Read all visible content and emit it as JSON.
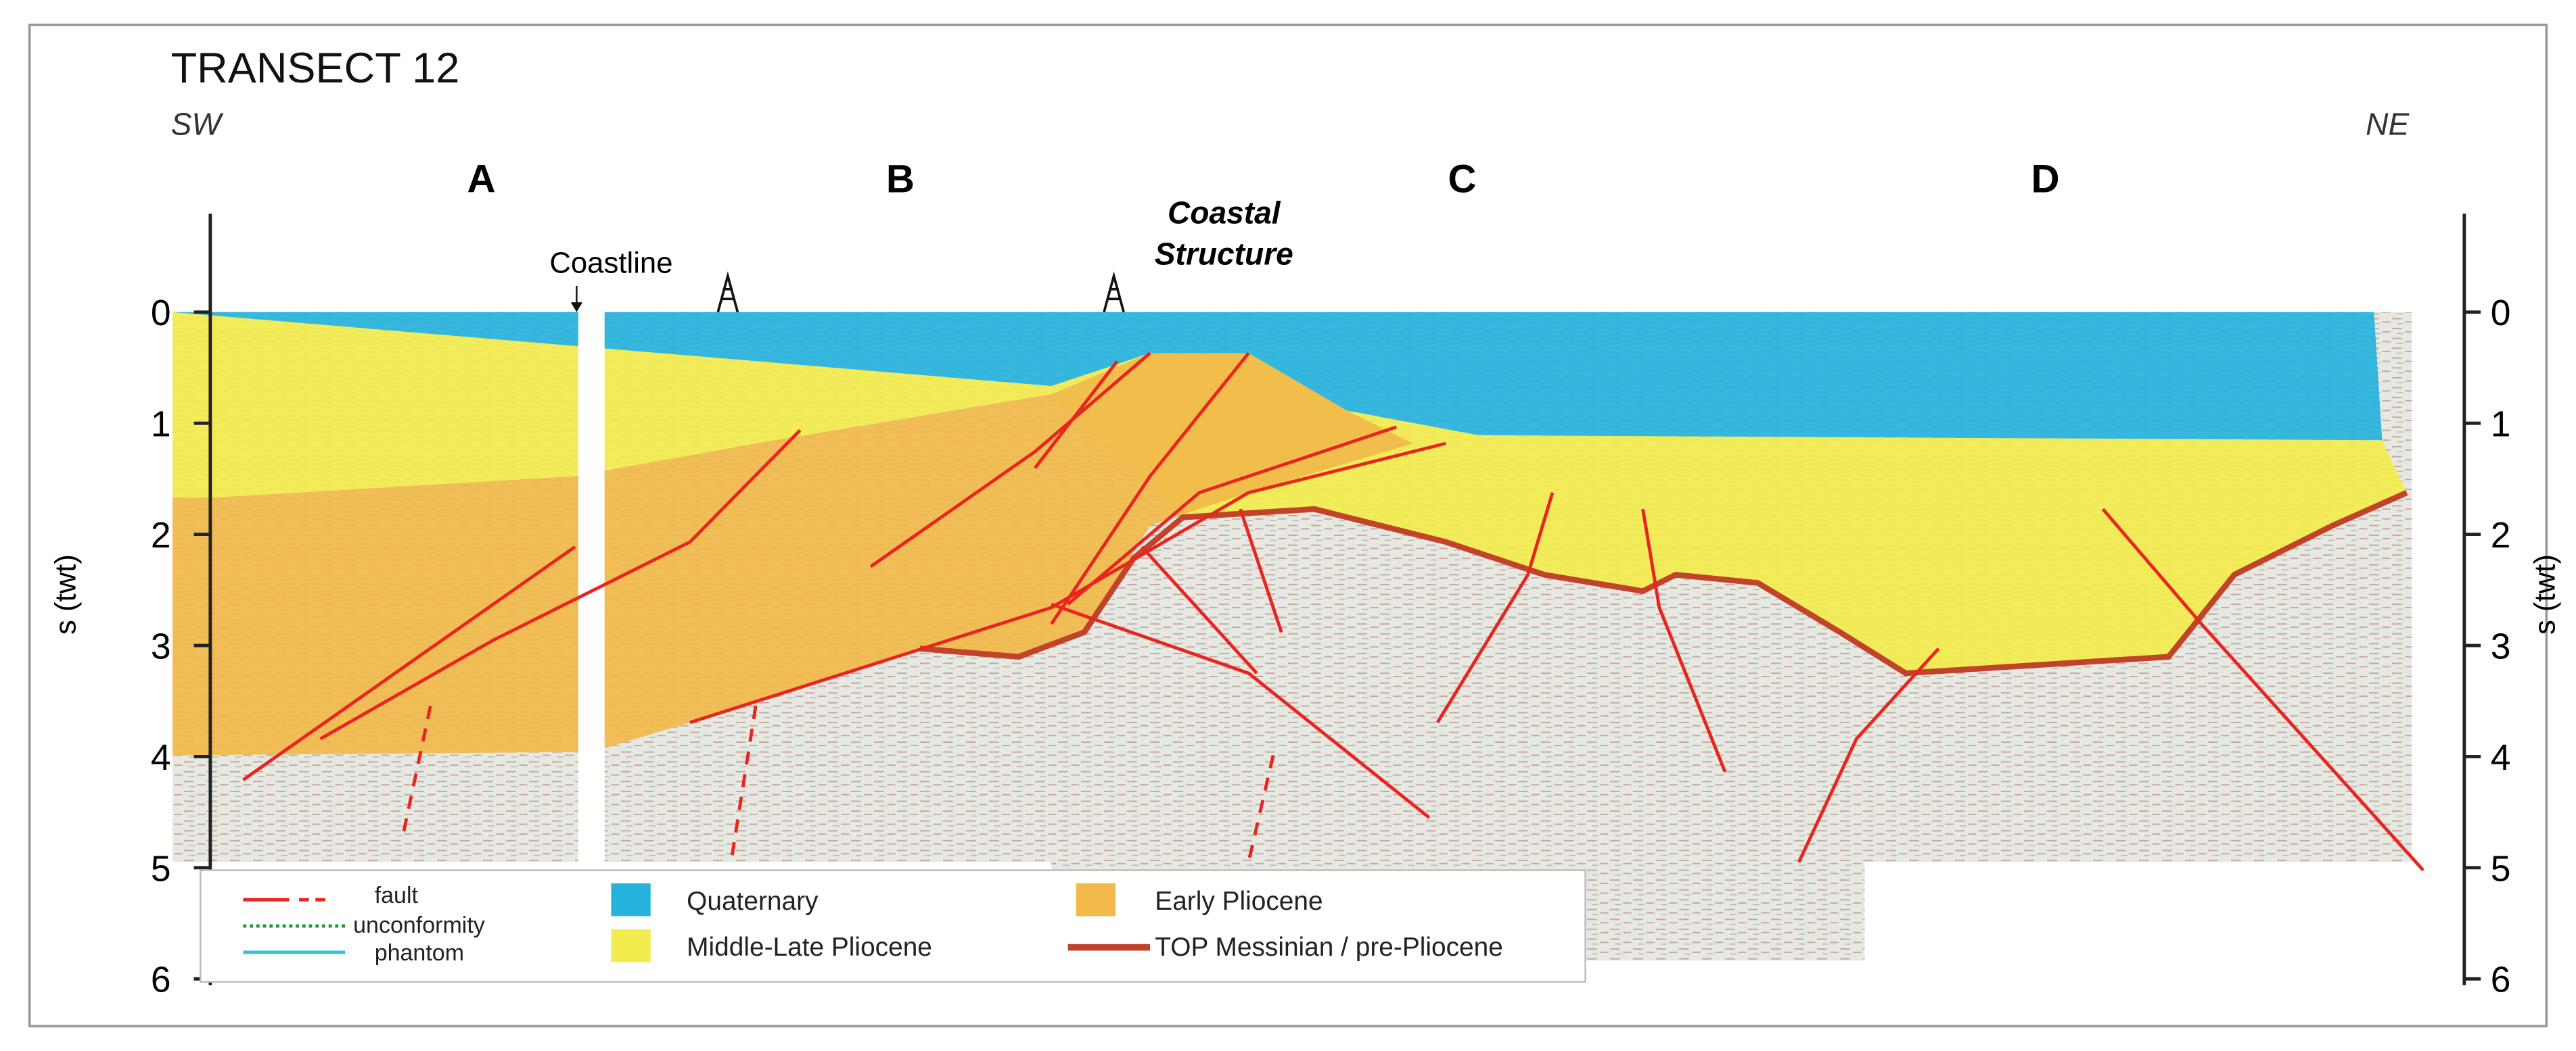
{
  "title": "TRANSECT 12",
  "orientation": {
    "left": "SW",
    "right": "NE"
  },
  "sections": [
    "A",
    "B",
    "C",
    "D"
  ],
  "annotations": {
    "coastline": "Coastline",
    "structure": [
      "Coastal",
      "Structure"
    ]
  },
  "axis": {
    "label": "s (twt)",
    "ticks": [
      0,
      1,
      2,
      3,
      4,
      5,
      6
    ]
  },
  "legend": [
    "fault",
    "unconformity",
    "phantom",
    "Quaternary",
    "Middle-Late Pliocene",
    "Early Pliocene",
    "TOP Messinian / pre-Pliocene"
  ]
}
